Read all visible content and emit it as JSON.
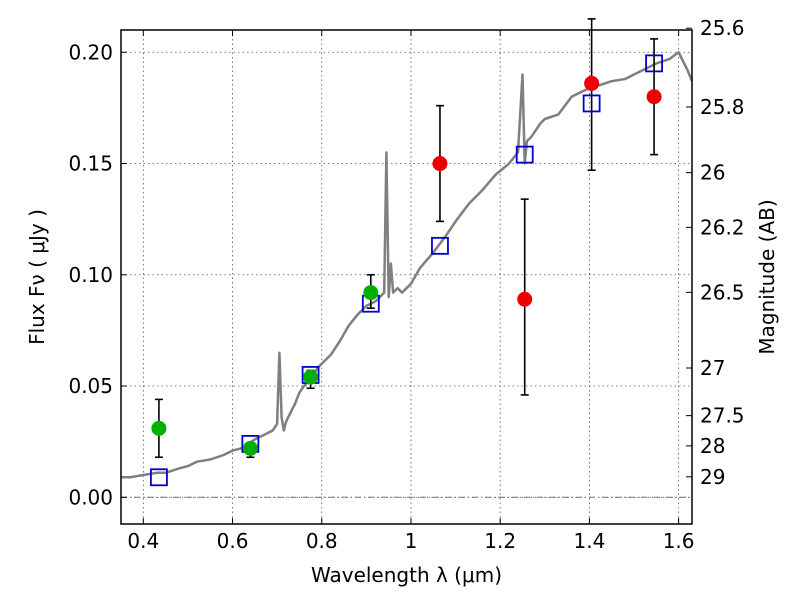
{
  "chart_data": {
    "type": "scatter",
    "title": "",
    "xlabel": "Wavelength  λ (μm)",
    "ylabel": "Flux  Fν  ( μJy )",
    "ylabel_right": "Magnitude (AB)",
    "xlim": [
      0.35,
      1.63
    ],
    "ylim": [
      -0.012,
      0.21
    ],
    "x_ticks": [
      0.4,
      0.6,
      0.8,
      1.0,
      1.2,
      1.4,
      1.6
    ],
    "x_tick_labels": [
      "0.4",
      "0.6",
      "0.8",
      "1",
      "1.2",
      "1.4",
      "1.6"
    ],
    "y_ticks": [
      0.0,
      0.05,
      0.1,
      0.15,
      0.2
    ],
    "y_tick_labels": [
      "0.00",
      "0.05",
      "0.10",
      "0.15",
      "0.20"
    ],
    "right_ticks": [
      {
        "label": "25.6",
        "flux": 0.2108
      },
      {
        "label": "25.8",
        "flux": 0.1754
      },
      {
        "label": "26",
        "flux": 0.1459
      },
      {
        "label": "26.2",
        "flux": 0.1213
      },
      {
        "label": "26.5",
        "flux": 0.0921
      },
      {
        "label": "27",
        "flux": 0.0581
      },
      {
        "label": "27.5",
        "flux": 0.0367
      },
      {
        "label": "28",
        "flux": 0.0231
      },
      {
        "label": "29",
        "flux": 0.0092
      }
    ],
    "grid": true,
    "colors": {
      "model": "#7f7f7f",
      "model_points": "#0000cc",
      "optical": "#00b000",
      "infrared": "#ee0000",
      "errorbar": "#000000"
    },
    "series": [
      {
        "kind": "model_spectrum",
        "x": [
          0.35,
          0.37,
          0.4,
          0.43,
          0.45,
          0.48,
          0.5,
          0.52,
          0.55,
          0.58,
          0.6,
          0.62,
          0.65,
          0.67,
          0.69,
          0.7,
          0.705,
          0.71,
          0.715,
          0.72,
          0.73,
          0.74,
          0.75,
          0.76,
          0.77,
          0.78,
          0.79,
          0.8,
          0.82,
          0.84,
          0.86,
          0.88,
          0.9,
          0.92,
          0.94,
          0.945,
          0.95,
          0.955,
          0.96,
          0.97,
          0.98,
          1.0,
          1.02,
          1.05,
          1.08,
          1.1,
          1.13,
          1.16,
          1.19,
          1.22,
          1.24,
          1.25,
          1.255,
          1.26,
          1.27,
          1.28,
          1.29,
          1.3,
          1.33,
          1.36,
          1.39,
          1.42,
          1.45,
          1.48,
          1.5,
          1.52,
          1.55,
          1.58,
          1.6,
          1.62,
          1.63
        ],
        "y": [
          0.009,
          0.009,
          0.01,
          0.011,
          0.011,
          0.013,
          0.014,
          0.016,
          0.017,
          0.019,
          0.021,
          0.022,
          0.026,
          0.028,
          0.03,
          0.033,
          0.065,
          0.036,
          0.03,
          0.034,
          0.038,
          0.042,
          0.047,
          0.05,
          0.052,
          0.054,
          0.058,
          0.06,
          0.064,
          0.07,
          0.077,
          0.082,
          0.086,
          0.088,
          0.092,
          0.155,
          0.09,
          0.105,
          0.092,
          0.094,
          0.092,
          0.096,
          0.103,
          0.11,
          0.118,
          0.124,
          0.132,
          0.138,
          0.145,
          0.15,
          0.155,
          0.19,
          0.15,
          0.16,
          0.162,
          0.165,
          0.168,
          0.17,
          0.172,
          0.18,
          0.183,
          0.185,
          0.187,
          0.188,
          0.19,
          0.192,
          0.195,
          0.197,
          0.2,
          0.192,
          0.187
        ]
      },
      {
        "kind": "model_points",
        "x": [
          0.435,
          0.64,
          0.775,
          0.91,
          1.065,
          1.255,
          1.405,
          1.545
        ],
        "y": [
          0.009,
          0.024,
          0.055,
          0.087,
          0.113,
          0.154,
          0.177,
          0.195
        ]
      },
      {
        "kind": "optical_detections",
        "x": [
          0.435,
          0.64,
          0.775,
          0.91
        ],
        "y": [
          0.031,
          0.022,
          0.054,
          0.092
        ],
        "err_low": [
          0.018,
          0.018,
          0.049,
          0.085
        ],
        "err_high": [
          0.044,
          0.024,
          0.057,
          0.1
        ]
      },
      {
        "kind": "infrared_detections",
        "x": [
          1.065,
          1.255,
          1.405,
          1.545
        ],
        "y": [
          0.15,
          0.089,
          0.186,
          0.18
        ],
        "err_low": [
          0.124,
          0.046,
          0.147,
          0.154
        ],
        "err_high": [
          0.176,
          0.134,
          0.215,
          0.206
        ]
      }
    ]
  }
}
